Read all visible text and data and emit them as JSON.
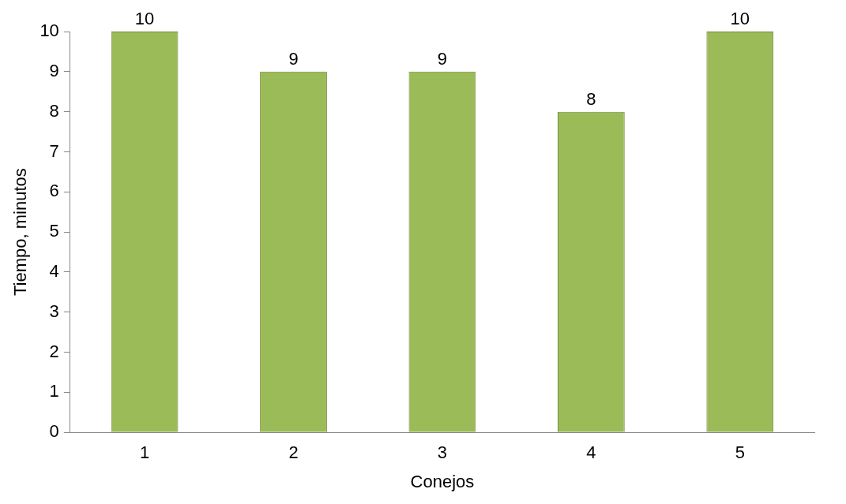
{
  "chart_data": {
    "type": "bar",
    "xlabel": "Conejos",
    "ylabel": "Tiempo, minutos",
    "categories": [
      "1",
      "2",
      "3",
      "4",
      "5"
    ],
    "values": [
      10,
      9,
      9,
      8,
      10
    ],
    "color": "#9bbb59",
    "ylim": [
      0,
      10
    ],
    "yticks": [
      0,
      1,
      2,
      3,
      4,
      5,
      6,
      7,
      8,
      9,
      10
    ],
    "data_labels": true
  }
}
